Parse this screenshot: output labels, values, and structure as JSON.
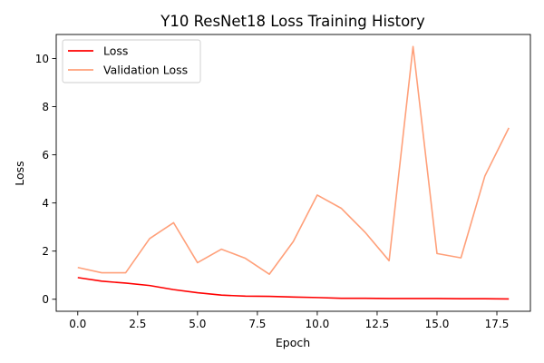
{
  "chart_data": {
    "type": "line",
    "title": "Y10 ResNet18 Loss Training History",
    "xlabel": "Epoch",
    "ylabel": "Loss",
    "xlim": [
      -0.9,
      18.9
    ],
    "ylim": [
      -0.5,
      11.0
    ],
    "xticks": [
      0.0,
      2.5,
      5.0,
      7.5,
      10.0,
      12.5,
      15.0,
      17.5
    ],
    "xtick_labels": [
      "0.0",
      "2.5",
      "5.0",
      "7.5",
      "10.0",
      "12.5",
      "15.0",
      "17.5"
    ],
    "yticks": [
      0,
      2,
      4,
      6,
      8,
      10
    ],
    "ytick_labels": [
      "0",
      "2",
      "4",
      "6",
      "8",
      "10"
    ],
    "grid": false,
    "legend_position": "top-left",
    "x": [
      0,
      1,
      2,
      3,
      4,
      5,
      6,
      7,
      8,
      9,
      10,
      11,
      12,
      13,
      14,
      15,
      16,
      17,
      18
    ],
    "series": [
      {
        "name": "Loss",
        "color": "#ff0000",
        "values": [
          0.9,
          0.75,
          0.67,
          0.57,
          0.4,
          0.27,
          0.17,
          0.13,
          0.12,
          0.09,
          0.07,
          0.04,
          0.04,
          0.03,
          0.03,
          0.03,
          0.02,
          0.02,
          0.01
        ]
      },
      {
        "name": "Validation Loss",
        "color": "#ffa07a",
        "values": [
          1.32,
          1.1,
          1.1,
          2.52,
          3.18,
          1.52,
          2.08,
          1.7,
          1.04,
          2.4,
          4.33,
          3.78,
          2.78,
          1.6,
          10.5,
          1.9,
          1.72,
          5.12,
          7.12
        ]
      }
    ]
  }
}
